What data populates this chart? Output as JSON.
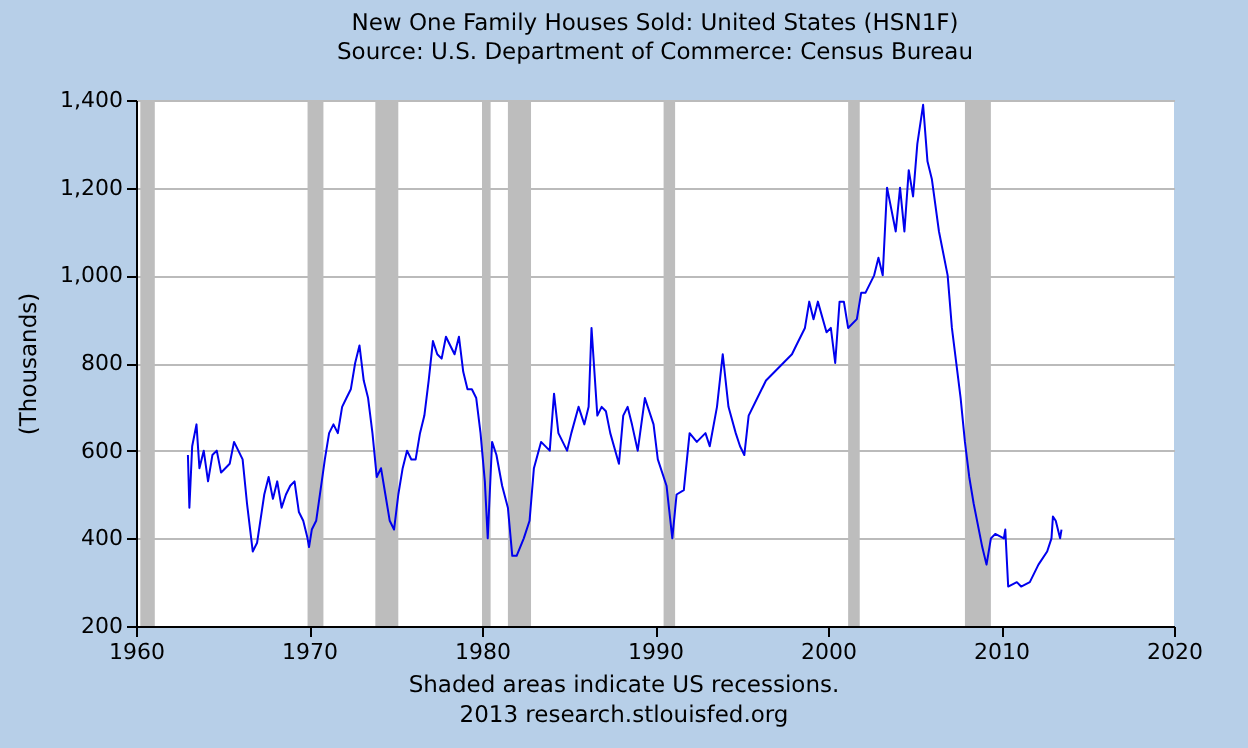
{
  "chart_data": {
    "type": "line",
    "title": "New One Family Houses Sold: United States (HSN1F)",
    "subtitle": "Source: U.S. Department of Commerce: Census Bureau",
    "ylabel": "(Thousands)",
    "annotations": [
      "Shaded areas indicate US recessions.",
      "2013 research.stlouisfed.org"
    ],
    "x": [
      "1963-01",
      "1963-02",
      "1963-04",
      "1963-07",
      "1963-09",
      "1963-12",
      "1964-03",
      "1964-06",
      "1964-09",
      "1964-12",
      "1965-03",
      "1965-06",
      "1965-09",
      "1965-12",
      "1966-03",
      "1966-06",
      "1966-10",
      "1967-01",
      "1967-06",
      "1967-09",
      "1967-12",
      "1968-03",
      "1968-06",
      "1968-09",
      "1968-12",
      "1969-03",
      "1969-06",
      "1969-09",
      "1969-12",
      "1970-01",
      "1970-03",
      "1970-06",
      "1970-09",
      "1970-12",
      "1971-03",
      "1971-06",
      "1971-09",
      "1971-12",
      "1972-03",
      "1972-06",
      "1972-09",
      "1972-12",
      "1973-03",
      "1973-06",
      "1973-09",
      "1973-12",
      "1974-03",
      "1974-06",
      "1974-09",
      "1974-12",
      "1975-03",
      "1975-06",
      "1975-09",
      "1975-12",
      "1976-03",
      "1976-06",
      "1976-09",
      "1976-12",
      "1977-03",
      "1977-06",
      "1977-09",
      "1977-12",
      "1978-03",
      "1978-06",
      "1978-09",
      "1978-12",
      "1979-03",
      "1979-06",
      "1979-09",
      "1979-12",
      "1980-03",
      "1980-05",
      "1980-08",
      "1980-11",
      "1981-03",
      "1981-07",
      "1981-10",
      "1982-01",
      "1982-06",
      "1982-10",
      "1983-01",
      "1983-06",
      "1983-12",
      "1984-03",
      "1984-06",
      "1984-12",
      "1985-03",
      "1985-08",
      "1985-12",
      "1986-03",
      "1986-05",
      "1986-09",
      "1986-12",
      "1987-03",
      "1987-06",
      "1987-12",
      "1988-03",
      "1988-06",
      "1988-09",
      "1989-01",
      "1989-06",
      "1989-12",
      "1990-03",
      "1990-09",
      "1991-01",
      "1991-04",
      "1991-09",
      "1992-01",
      "1992-06",
      "1992-12",
      "1993-03",
      "1993-08",
      "1993-12",
      "1994-04",
      "1994-09",
      "1994-12",
      "1995-03",
      "1995-06",
      "1995-12",
      "1996-06",
      "1996-12",
      "1997-06",
      "1997-12",
      "1998-03",
      "1998-09",
      "1998-12",
      "1999-03",
      "1999-06",
      "1999-12",
      "2000-03",
      "2000-06",
      "2000-09",
      "2000-12",
      "2001-03",
      "2001-09",
      "2001-12",
      "2002-03",
      "2002-09",
      "2002-12",
      "2003-03",
      "2003-06",
      "2003-12",
      "2004-03",
      "2004-06",
      "2004-09",
      "2004-12",
      "2005-03",
      "2005-07",
      "2005-10",
      "2006-01",
      "2006-06",
      "2006-12",
      "2007-03",
      "2007-09",
      "2007-12",
      "2008-03",
      "2008-06",
      "2008-12",
      "2009-03",
      "2009-06",
      "2009-09",
      "2010-03",
      "2010-04",
      "2010-06",
      "2010-12",
      "2011-03",
      "2011-09",
      "2012-03",
      "2012-09",
      "2012-12",
      "2013-01",
      "2013-03",
      "2013-06",
      "2013-07"
    ],
    "series": [
      {
        "color": "#0000ee",
        "values": [
          590,
          470,
          610,
          660,
          560,
          600,
          530,
          590,
          600,
          550,
          560,
          570,
          620,
          600,
          580,
          480,
          370,
          390,
          500,
          540,
          490,
          530,
          470,
          500,
          520,
          530,
          460,
          440,
          400,
          380,
          420,
          440,
          510,
          580,
          640,
          660,
          640,
          700,
          720,
          740,
          800,
          840,
          760,
          720,
          640,
          540,
          560,
          500,
          440,
          420,
          500,
          560,
          600,
          580,
          580,
          640,
          680,
          760,
          850,
          820,
          810,
          860,
          840,
          820,
          860,
          780,
          740,
          740,
          720,
          640,
          530,
          400,
          620,
          590,
          520,
          470,
          360,
          360,
          400,
          440,
          560,
          620,
          600,
          730,
          640,
          600,
          640,
          700,
          660,
          700,
          880,
          680,
          700,
          690,
          640,
          570,
          680,
          700,
          660,
          600,
          720,
          660,
          580,
          520,
          400,
          500,
          510,
          640,
          620,
          640,
          610,
          700,
          820,
          700,
          640,
          610,
          590,
          680,
          720,
          760,
          780,
          800,
          820,
          840,
          880,
          940,
          900,
          940,
          870,
          880,
          800,
          940,
          940,
          880,
          900,
          960,
          960,
          1000,
          1040,
          1000,
          1200,
          1100,
          1200,
          1100,
          1240,
          1180,
          1300,
          1389,
          1260,
          1220,
          1100,
          1000,
          880,
          720,
          620,
          540,
          480,
          380,
          340,
          400,
          410,
          400,
          420,
          290,
          300,
          290,
          300,
          340,
          370,
          400,
          450,
          440,
          400,
          420
        ]
      }
    ],
    "xlim": [
      "1960",
      "2020"
    ],
    "xticks": [
      "1960",
      "1970",
      "1980",
      "1990",
      "2000",
      "2010",
      "2020"
    ],
    "ylim": [
      200,
      1400
    ],
    "yticks": [
      {
        "value": 200,
        "label": "200"
      },
      {
        "value": 400,
        "label": "400"
      },
      {
        "value": 600,
        "label": "600"
      },
      {
        "value": 800,
        "label": "800"
      },
      {
        "value": 1000,
        "label": "1,000"
      },
      {
        "value": 1200,
        "label": "1,200"
      },
      {
        "value": 1400,
        "label": "1,400"
      }
    ],
    "bands": [
      {
        "axis": "x",
        "from": "1960-04",
        "to": "1961-02",
        "color": "#bdbdbd"
      },
      {
        "axis": "x",
        "from": "1969-12",
        "to": "1970-11",
        "color": "#bdbdbd"
      },
      {
        "axis": "x",
        "from": "1973-11",
        "to": "1975-03",
        "color": "#bdbdbd"
      },
      {
        "axis": "x",
        "from": "1980-01",
        "to": "1980-07",
        "color": "#bdbdbd"
      },
      {
        "axis": "x",
        "from": "1981-07",
        "to": "1982-11",
        "color": "#bdbdbd"
      },
      {
        "axis": "x",
        "from": "1990-07",
        "to": "1991-03",
        "color": "#bdbdbd"
      },
      {
        "axis": "x",
        "from": "2001-03",
        "to": "2001-11",
        "color": "#bdbdbd"
      },
      {
        "axis": "x",
        "from": "2007-12",
        "to": "2009-06",
        "color": "#bdbdbd"
      }
    ],
    "grid": "y",
    "line_style": "solid"
  }
}
